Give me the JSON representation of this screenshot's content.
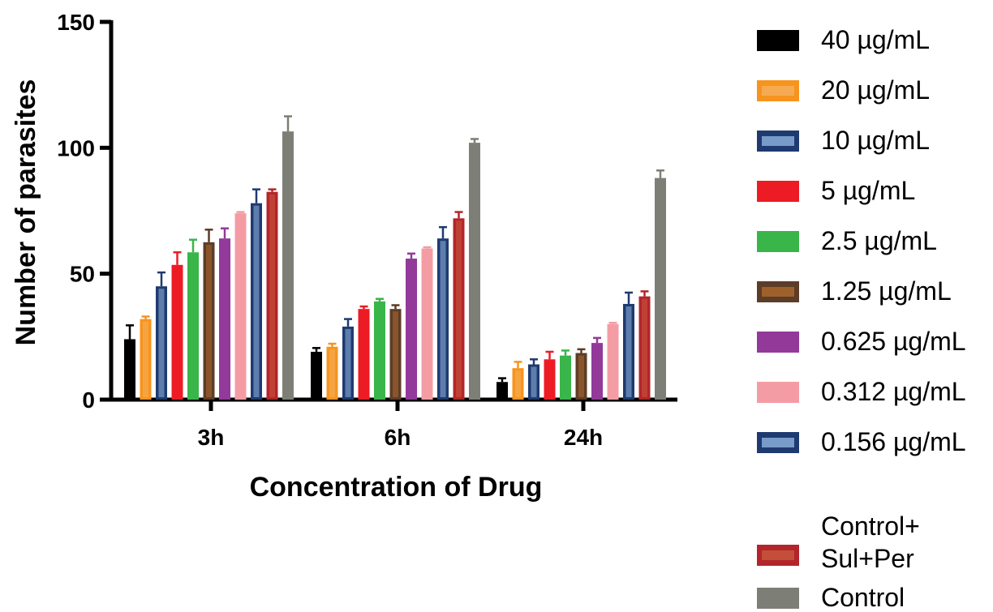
{
  "chart_data": {
    "type": "bar",
    "title": "",
    "xlabel": "Concentration of Drug",
    "ylabel": "Number of parasites",
    "ylim": [
      0,
      150
    ],
    "yticks": [
      0,
      50,
      100,
      150
    ],
    "grid": false,
    "legend_position": "right",
    "categories": [
      "3h",
      "6h",
      "24h"
    ],
    "series": [
      {
        "name": "40 µg/mL",
        "color": "#000000",
        "inner": null,
        "values": [
          24,
          19,
          7
        ],
        "errors": [
          5.5,
          1.5,
          1.5
        ]
      },
      {
        "name": "20 µg/mL",
        "color": "#f7941d",
        "inner": "#f5b060",
        "values": [
          32,
          21,
          12.5
        ],
        "errors": [
          1,
          1.2,
          2.5
        ]
      },
      {
        "name": "10 µg/mL",
        "color": "#1f3a70",
        "inner": "#8fb4e0",
        "values": [
          45,
          29,
          14
        ],
        "errors": [
          5.5,
          3,
          2
        ]
      },
      {
        "name": "5 µg/mL",
        "color": "#ed1c24",
        "inner": null,
        "values": [
          53.5,
          36,
          16
        ],
        "errors": [
          5,
          1,
          3
        ]
      },
      {
        "name": "2.5 µg/mL",
        "color": "#39b54a",
        "inner": null,
        "values": [
          58.5,
          39,
          17.5
        ],
        "errors": [
          5,
          1,
          2
        ]
      },
      {
        "name": "1.25 µg/mL",
        "color": "#5c3d28",
        "inner": "#b06a2c",
        "values": [
          62.5,
          36,
          18.5
        ],
        "errors": [
          5,
          1.5,
          1.5
        ]
      },
      {
        "name": "0.625 µg/mL",
        "color": "#92399a",
        "inner": null,
        "values": [
          64,
          56,
          22.5
        ],
        "errors": [
          4,
          2,
          2
        ]
      },
      {
        "name": "0.312 µg/mL",
        "color": "#f49ca4",
        "inner": null,
        "values": [
          74,
          60,
          30
        ],
        "errors": [
          0.5,
          0.5,
          0.5
        ]
      },
      {
        "name": "0.156 µg/mL",
        "color": "#1f3a70",
        "inner": "#8fb4e0",
        "values": [
          78,
          64,
          38
        ],
        "errors": [
          5.5,
          4.5,
          4.5
        ]
      },
      {
        "name": "Control+\nSul+Per",
        "color": "#b3252b",
        "inner": "#c85a3c",
        "values": [
          82.5,
          72,
          41
        ],
        "errors": [
          1,
          2.5,
          2
        ]
      },
      {
        "name": "Control",
        "color": "#7d7e76",
        "inner": null,
        "values": [
          106.5,
          102,
          88
        ],
        "errors": [
          6,
          1.5,
          3
        ]
      }
    ]
  }
}
